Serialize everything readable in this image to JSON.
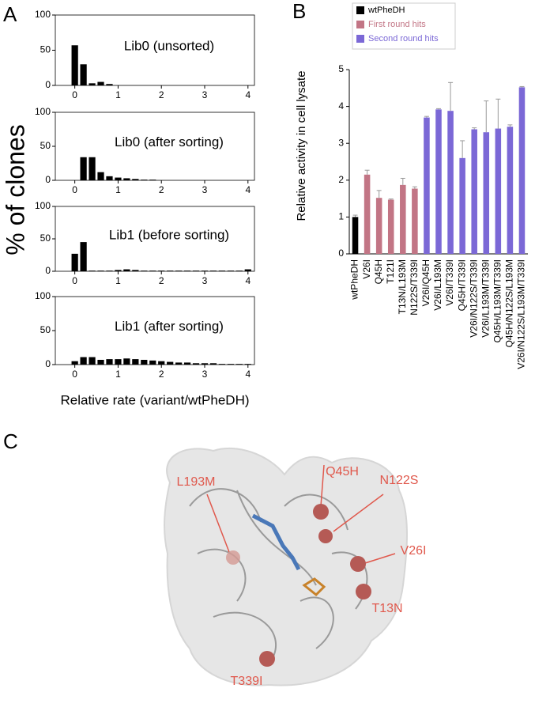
{
  "figure": {
    "panel_labels": [
      "A",
      "B",
      "C"
    ],
    "ylabel": "% of clones",
    "xlabel": "Relative rate (variant/wtPheDH)"
  },
  "chart_data": [
    {
      "type": "histogram",
      "title": "Lib0 (unsorted)",
      "color": "#000000",
      "bins": [
        -0.1,
        0.1,
        0.3,
        0.5,
        0.7,
        0.9,
        1.1,
        1.3,
        1.5,
        1.7,
        1.9,
        2.1,
        2.3,
        2.5,
        2.7,
        2.9,
        3.1,
        3.3,
        3.5,
        3.7,
        3.9,
        4.1
      ],
      "counts": [
        57,
        30,
        3,
        5,
        2,
        0,
        0,
        0,
        0,
        0,
        0,
        0,
        0,
        0,
        0,
        0,
        0,
        0,
        0,
        0,
        0
      ],
      "xlim": [
        -0.45,
        4.15
      ],
      "xticks": [
        0,
        1,
        2,
        3,
        4
      ],
      "ylim": [
        0,
        100
      ],
      "yticks": [
        0,
        50,
        100
      ]
    },
    {
      "type": "histogram",
      "title": "Lib0 (after sorting)",
      "color": "#000000",
      "bins": [
        -0.1,
        0.1,
        0.3,
        0.5,
        0.7,
        0.9,
        1.1,
        1.3,
        1.5,
        1.7,
        1.9,
        2.1,
        2.3,
        2.5,
        2.7,
        2.9,
        3.1,
        3.3,
        3.5,
        3.7,
        3.9,
        4.1
      ],
      "counts": [
        0,
        34,
        34,
        12,
        6,
        4,
        3,
        2,
        1,
        1,
        0,
        0,
        0,
        0,
        0,
        0,
        0,
        0,
        0,
        0,
        0
      ],
      "xlim": [
        -0.45,
        4.15
      ],
      "xticks": [
        0,
        1,
        2,
        3,
        4
      ],
      "ylim": [
        0,
        100
      ],
      "yticks": [
        0,
        50,
        100
      ]
    },
    {
      "type": "histogram",
      "title": "Lib1 (before sorting)",
      "color": "#000000",
      "bins": [
        -0.1,
        0.1,
        0.3,
        0.5,
        0.7,
        0.9,
        1.1,
        1.3,
        1.5,
        1.7,
        1.9,
        2.1,
        2.3,
        2.5,
        2.7,
        2.9,
        3.1,
        3.3,
        3.5,
        3.7,
        3.9,
        4.1
      ],
      "counts": [
        27,
        45,
        1,
        1,
        1,
        2,
        3,
        2,
        1,
        1,
        1,
        1,
        1,
        1,
        1,
        1,
        1,
        1,
        1,
        1,
        3
      ],
      "xlim": [
        -0.45,
        4.15
      ],
      "xticks": [
        0,
        1,
        2,
        3,
        4
      ],
      "ylim": [
        0,
        100
      ],
      "yticks": [
        0,
        50,
        100
      ]
    },
    {
      "type": "histogram",
      "title": "Lib1 (after sorting)",
      "color": "#000000",
      "bins": [
        -0.1,
        0.1,
        0.3,
        0.5,
        0.7,
        0.9,
        1.1,
        1.3,
        1.5,
        1.7,
        1.9,
        2.1,
        2.3,
        2.5,
        2.7,
        2.9,
        3.1,
        3.3,
        3.5,
        3.7,
        3.9,
        4.1
      ],
      "counts": [
        5,
        11,
        11,
        7,
        8,
        8,
        9,
        8,
        7,
        6,
        5,
        4,
        3,
        3,
        2,
        2,
        2,
        1,
        1,
        1,
        1
      ],
      "xlim": [
        -0.45,
        4.15
      ],
      "xticks": [
        0,
        1,
        2,
        3,
        4
      ],
      "ylim": [
        0,
        100
      ],
      "yticks": [
        0,
        50,
        100
      ]
    },
    {
      "type": "bar",
      "ylabel": "Relative activity in cell lysate",
      "legend": "upper left",
      "categories": [
        "wtPheDH",
        "V26I",
        "Q45H",
        "T121I",
        "T13N/L193M",
        "N122S/T339I",
        "V26I/Q45H",
        "V26I/L193M",
        "V26I/T339I",
        "Q45H/T339I",
        "V26I/N122S/T339I",
        "V26I/L193M/T339I",
        "Q45H/L193M/T339I",
        "Q45H/N122S/L193M",
        "V26I/N122S/L193M/T339I"
      ],
      "series": [
        {
          "name": "wtPheDH",
          "color": "#000000",
          "values": [
            1.0,
            null,
            null,
            null,
            null,
            null,
            null,
            null,
            null,
            null,
            null,
            null,
            null,
            null,
            null
          ],
          "errors": [
            0.05,
            null,
            null,
            null,
            null,
            null,
            null,
            null,
            null,
            null,
            null,
            null,
            null,
            null,
            null
          ]
        },
        {
          "name": "First round hits",
          "color": "#c27585",
          "values": [
            null,
            2.15,
            1.52,
            1.47,
            1.87,
            1.77,
            null,
            null,
            null,
            null,
            null,
            null,
            null,
            null,
            null
          ],
          "errors": [
            null,
            0.12,
            0.2,
            0.02,
            0.18,
            0.05,
            null,
            null,
            null,
            null,
            null,
            null,
            null,
            null,
            null
          ]
        },
        {
          "name": "Second round hits",
          "color": "#7b68d6",
          "values": [
            null,
            null,
            null,
            null,
            null,
            null,
            3.7,
            3.92,
            3.88,
            2.6,
            3.38,
            3.3,
            3.4,
            3.45,
            4.52
          ],
          "errors": [
            null,
            null,
            null,
            null,
            null,
            null,
            0.03,
            0.02,
            0.77,
            0.47,
            0.04,
            0.85,
            0.8,
            0.05,
            0.02
          ]
        }
      ],
      "ylim": [
        0,
        5
      ],
      "yticks": [
        0,
        1,
        2,
        3,
        4,
        5
      ]
    }
  ],
  "structure": {
    "labels": [
      "Q45H",
      "N122S",
      "L193M",
      "V26I",
      "T13N",
      "T339I"
    ]
  }
}
